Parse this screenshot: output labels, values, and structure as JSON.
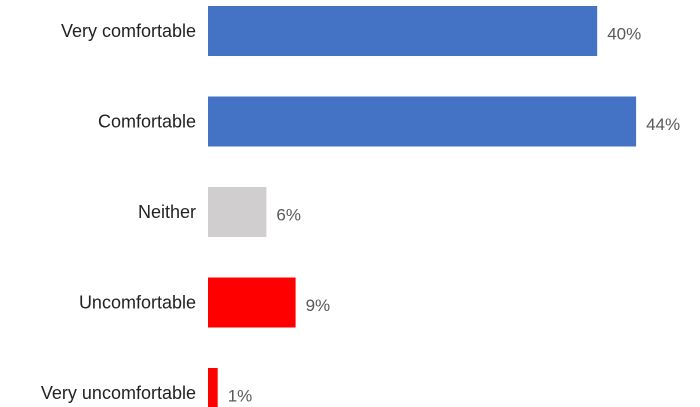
{
  "chart_data": {
    "type": "bar",
    "orientation": "horizontal",
    "categories": [
      "Very comfortable",
      "Comfortable",
      "Neither",
      "Uncomfortable",
      "Very uncomfortable"
    ],
    "values": [
      40,
      44,
      6,
      9,
      1
    ],
    "value_labels": [
      "40%",
      "44%",
      "6%",
      "9%",
      "1%"
    ],
    "colors": [
      "#4472c4",
      "#4472c4",
      "#d0cece",
      "#ff0000",
      "#ff0000"
    ],
    "title": "",
    "xlabel": "",
    "ylabel": "",
    "xlim": [
      0,
      44
    ],
    "grid": false,
    "legend": "none"
  },
  "colors": {
    "label_text": "#222222",
    "value_text": "#595959"
  }
}
